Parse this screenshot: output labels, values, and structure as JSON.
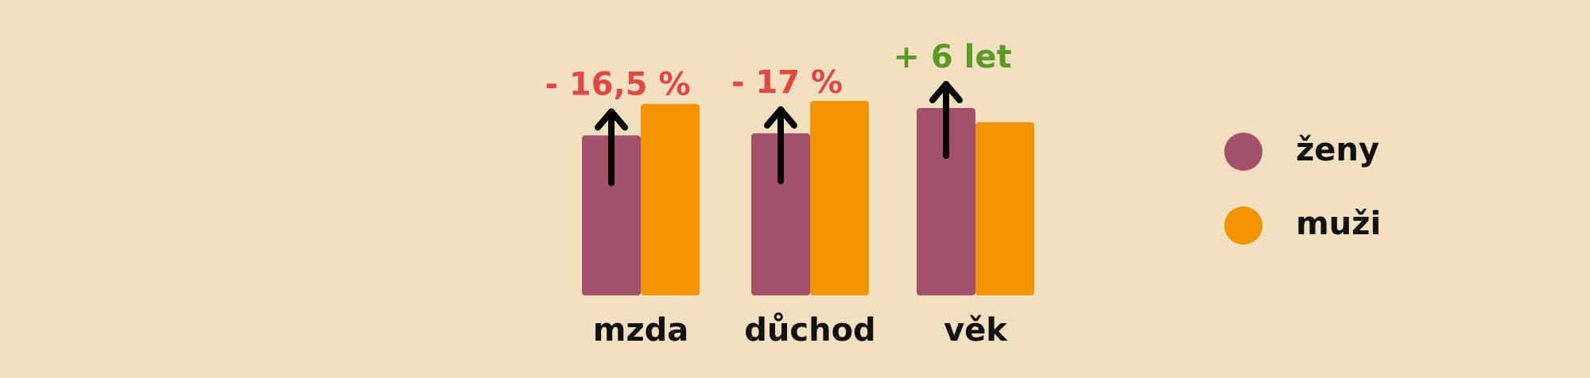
{
  "chart_data": {
    "type": "bar",
    "categories": [
      "mzda",
      "důchod",
      "věk"
    ],
    "series": [
      {
        "name": "ženy",
        "color": "#a3506b",
        "values": [
          158,
          160,
          185
        ]
      },
      {
        "name": "muži",
        "color": "#f29400",
        "values": [
          189,
          192,
          171
        ]
      }
    ],
    "annotations": [
      {
        "text": "- 16,5 %",
        "color": "#e04848"
      },
      {
        "text": "- 17 %",
        "color": "#e04848"
      },
      {
        "text": "+ 6 let",
        "color": "#5c9a26"
      }
    ]
  }
}
